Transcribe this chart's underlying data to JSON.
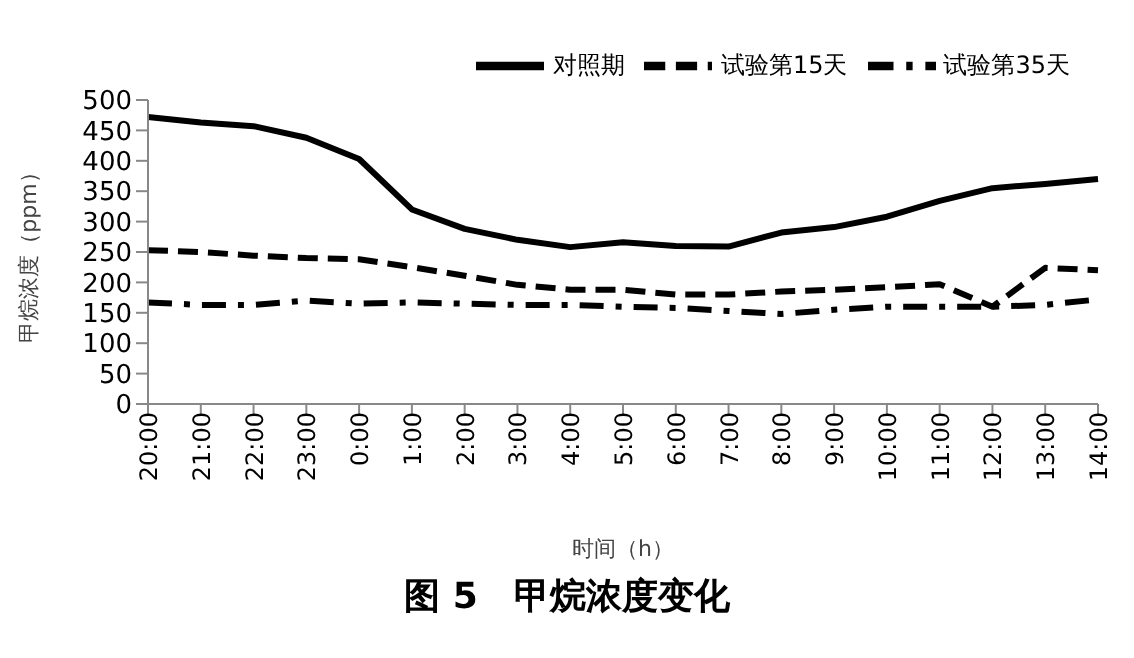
{
  "chart_data": {
    "type": "line",
    "title": "图 5　甲烷浓度变化",
    "xlabel": "时间（h）",
    "ylabel": "甲烷浓度（ppm）",
    "categories": [
      "20:00",
      "21:00",
      "22:00",
      "23:00",
      "0:00",
      "1:00",
      "2:00",
      "3:00",
      "4:00",
      "5:00",
      "6:00",
      "7:00",
      "8:00",
      "9:00",
      "10:00",
      "11:00",
      "12:00",
      "13:00",
      "14:00"
    ],
    "series": [
      {
        "name": "对照期",
        "color": "#000000",
        "line_style": "solid",
        "values": [
          472,
          463,
          457,
          438,
          403,
          320,
          288,
          270,
          258,
          266,
          260,
          259,
          282,
          291,
          308,
          334,
          355,
          362,
          370
        ]
      },
      {
        "name": "试验第15天",
        "color": "#000000",
        "line_style": "dashed",
        "values": [
          253,
          250,
          244,
          240,
          238,
          225,
          211,
          196,
          188,
          188,
          180,
          180,
          185,
          188,
          192,
          197,
          160,
          224,
          220
        ]
      },
      {
        "name": "试验第35天",
        "color": "#000000",
        "line_style": "dashdot",
        "values": [
          167,
          163,
          163,
          170,
          165,
          167,
          165,
          163,
          163,
          160,
          158,
          153,
          148,
          155,
          160,
          160,
          160,
          163,
          172
        ]
      }
    ],
    "ylim": [
      0,
      500
    ],
    "yticks": [
      0,
      50,
      100,
      150,
      200,
      250,
      300,
      350,
      400,
      450,
      500
    ],
    "grid": false,
    "legend": "top right",
    "marker": "none"
  }
}
